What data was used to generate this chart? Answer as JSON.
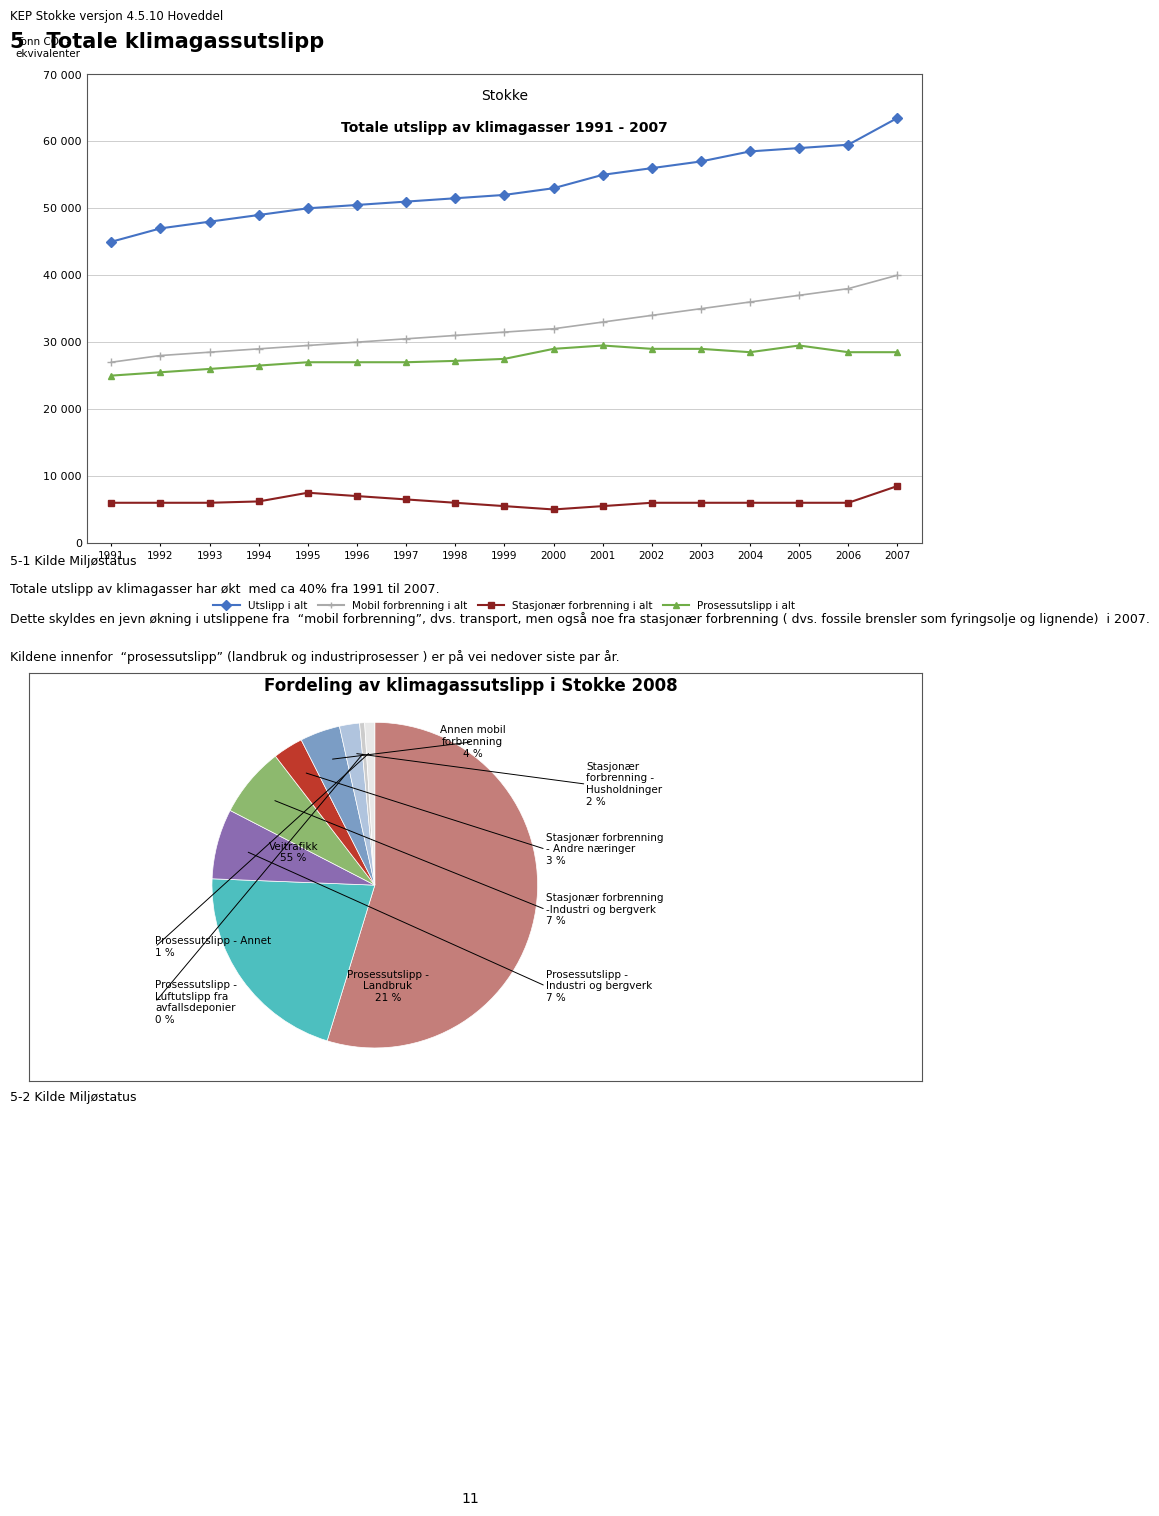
{
  "page_header": "KEP Stokke versjon 4.5.10 Hoveddel",
  "section_title": "5   Totale klimagassutslipp",
  "chart1_title_line1": "Stokke",
  "chart1_title_line2": "Totale utslipp av klimagasser 1991 - 2007",
  "chart1_ylabel": "Tonn CO₂ -\nekvivalenter",
  "chart1_years": [
    1991,
    1992,
    1993,
    1994,
    1995,
    1996,
    1997,
    1998,
    1999,
    2000,
    2001,
    2002,
    2003,
    2004,
    2005,
    2006,
    2007
  ],
  "chart1_utslipp_alt": [
    45000,
    47000,
    48000,
    49000,
    50000,
    50500,
    51000,
    51500,
    52000,
    53000,
    55000,
    56000,
    57000,
    58500,
    59000,
    59500,
    63500
  ],
  "chart1_mobil": [
    27000,
    28000,
    28500,
    29000,
    29500,
    30000,
    30500,
    31000,
    31500,
    32000,
    33000,
    34000,
    35000,
    36000,
    37000,
    38000,
    40000
  ],
  "chart1_stasjonar": [
    6000,
    6000,
    6000,
    6200,
    7500,
    7000,
    6500,
    6000,
    5500,
    5000,
    5500,
    6000,
    6000,
    6000,
    6000,
    6000,
    8500
  ],
  "chart1_prosess": [
    25000,
    25500,
    26000,
    26500,
    27000,
    27000,
    27000,
    27200,
    27500,
    29000,
    29500,
    29000,
    29000,
    28500,
    29500,
    28500,
    28500
  ],
  "chart1_ylim": [
    0,
    70000
  ],
  "chart1_yticks": [
    0,
    10000,
    20000,
    30000,
    40000,
    50000,
    60000,
    70000
  ],
  "chart1_ytick_labels": [
    "0",
    "10 000",
    "20 000",
    "30 000",
    "40 000",
    "50 000",
    "60 000",
    "70 000"
  ],
  "legend_labels": [
    "Utslipp i alt",
    "Mobil forbrenning i alt",
    "Stasjonær forbrenning i alt",
    "Prosessutslipp i alt"
  ],
  "line_colors": [
    "#4472C4",
    "#AAAAAA",
    "#8B2020",
    "#70AD47"
  ],
  "caption1": "5-1 Kilde Miljøstatus",
  "body_line1": "Totale utslipp av klimagasser har økt  med ca 40% fra 1991 til 2007.",
  "body_line2": "Dette skyldes en jevn økning i utslippene fra  “mobil forbrenning”, dvs. transport, men også noe fra stasjonær forbrenning ( dvs. fossile brensler som fyringsolje og lignende)  i 2007.",
  "body_line3": "Kildene innenfor  “prosessutslipp” (landbruk og industriprosesser ) er på vei nedover siste par år.",
  "chart2_title": "Fordeling av klimagassutslipp i Stokke 2008",
  "chart2_sizes": [
    55,
    21,
    7,
    7,
    3,
    4,
    2,
    0.5,
    1
  ],
  "chart2_colors": [
    "#C47E7A",
    "#4DBFBF",
    "#8B6BB1",
    "#8DB96E",
    "#C0392B",
    "#7B9DC5",
    "#B0C4DE",
    "#CCCCCC",
    "#E8E8E8"
  ],
  "caption2": "5-2 Kilde Miljøstatus",
  "page_number": "11"
}
